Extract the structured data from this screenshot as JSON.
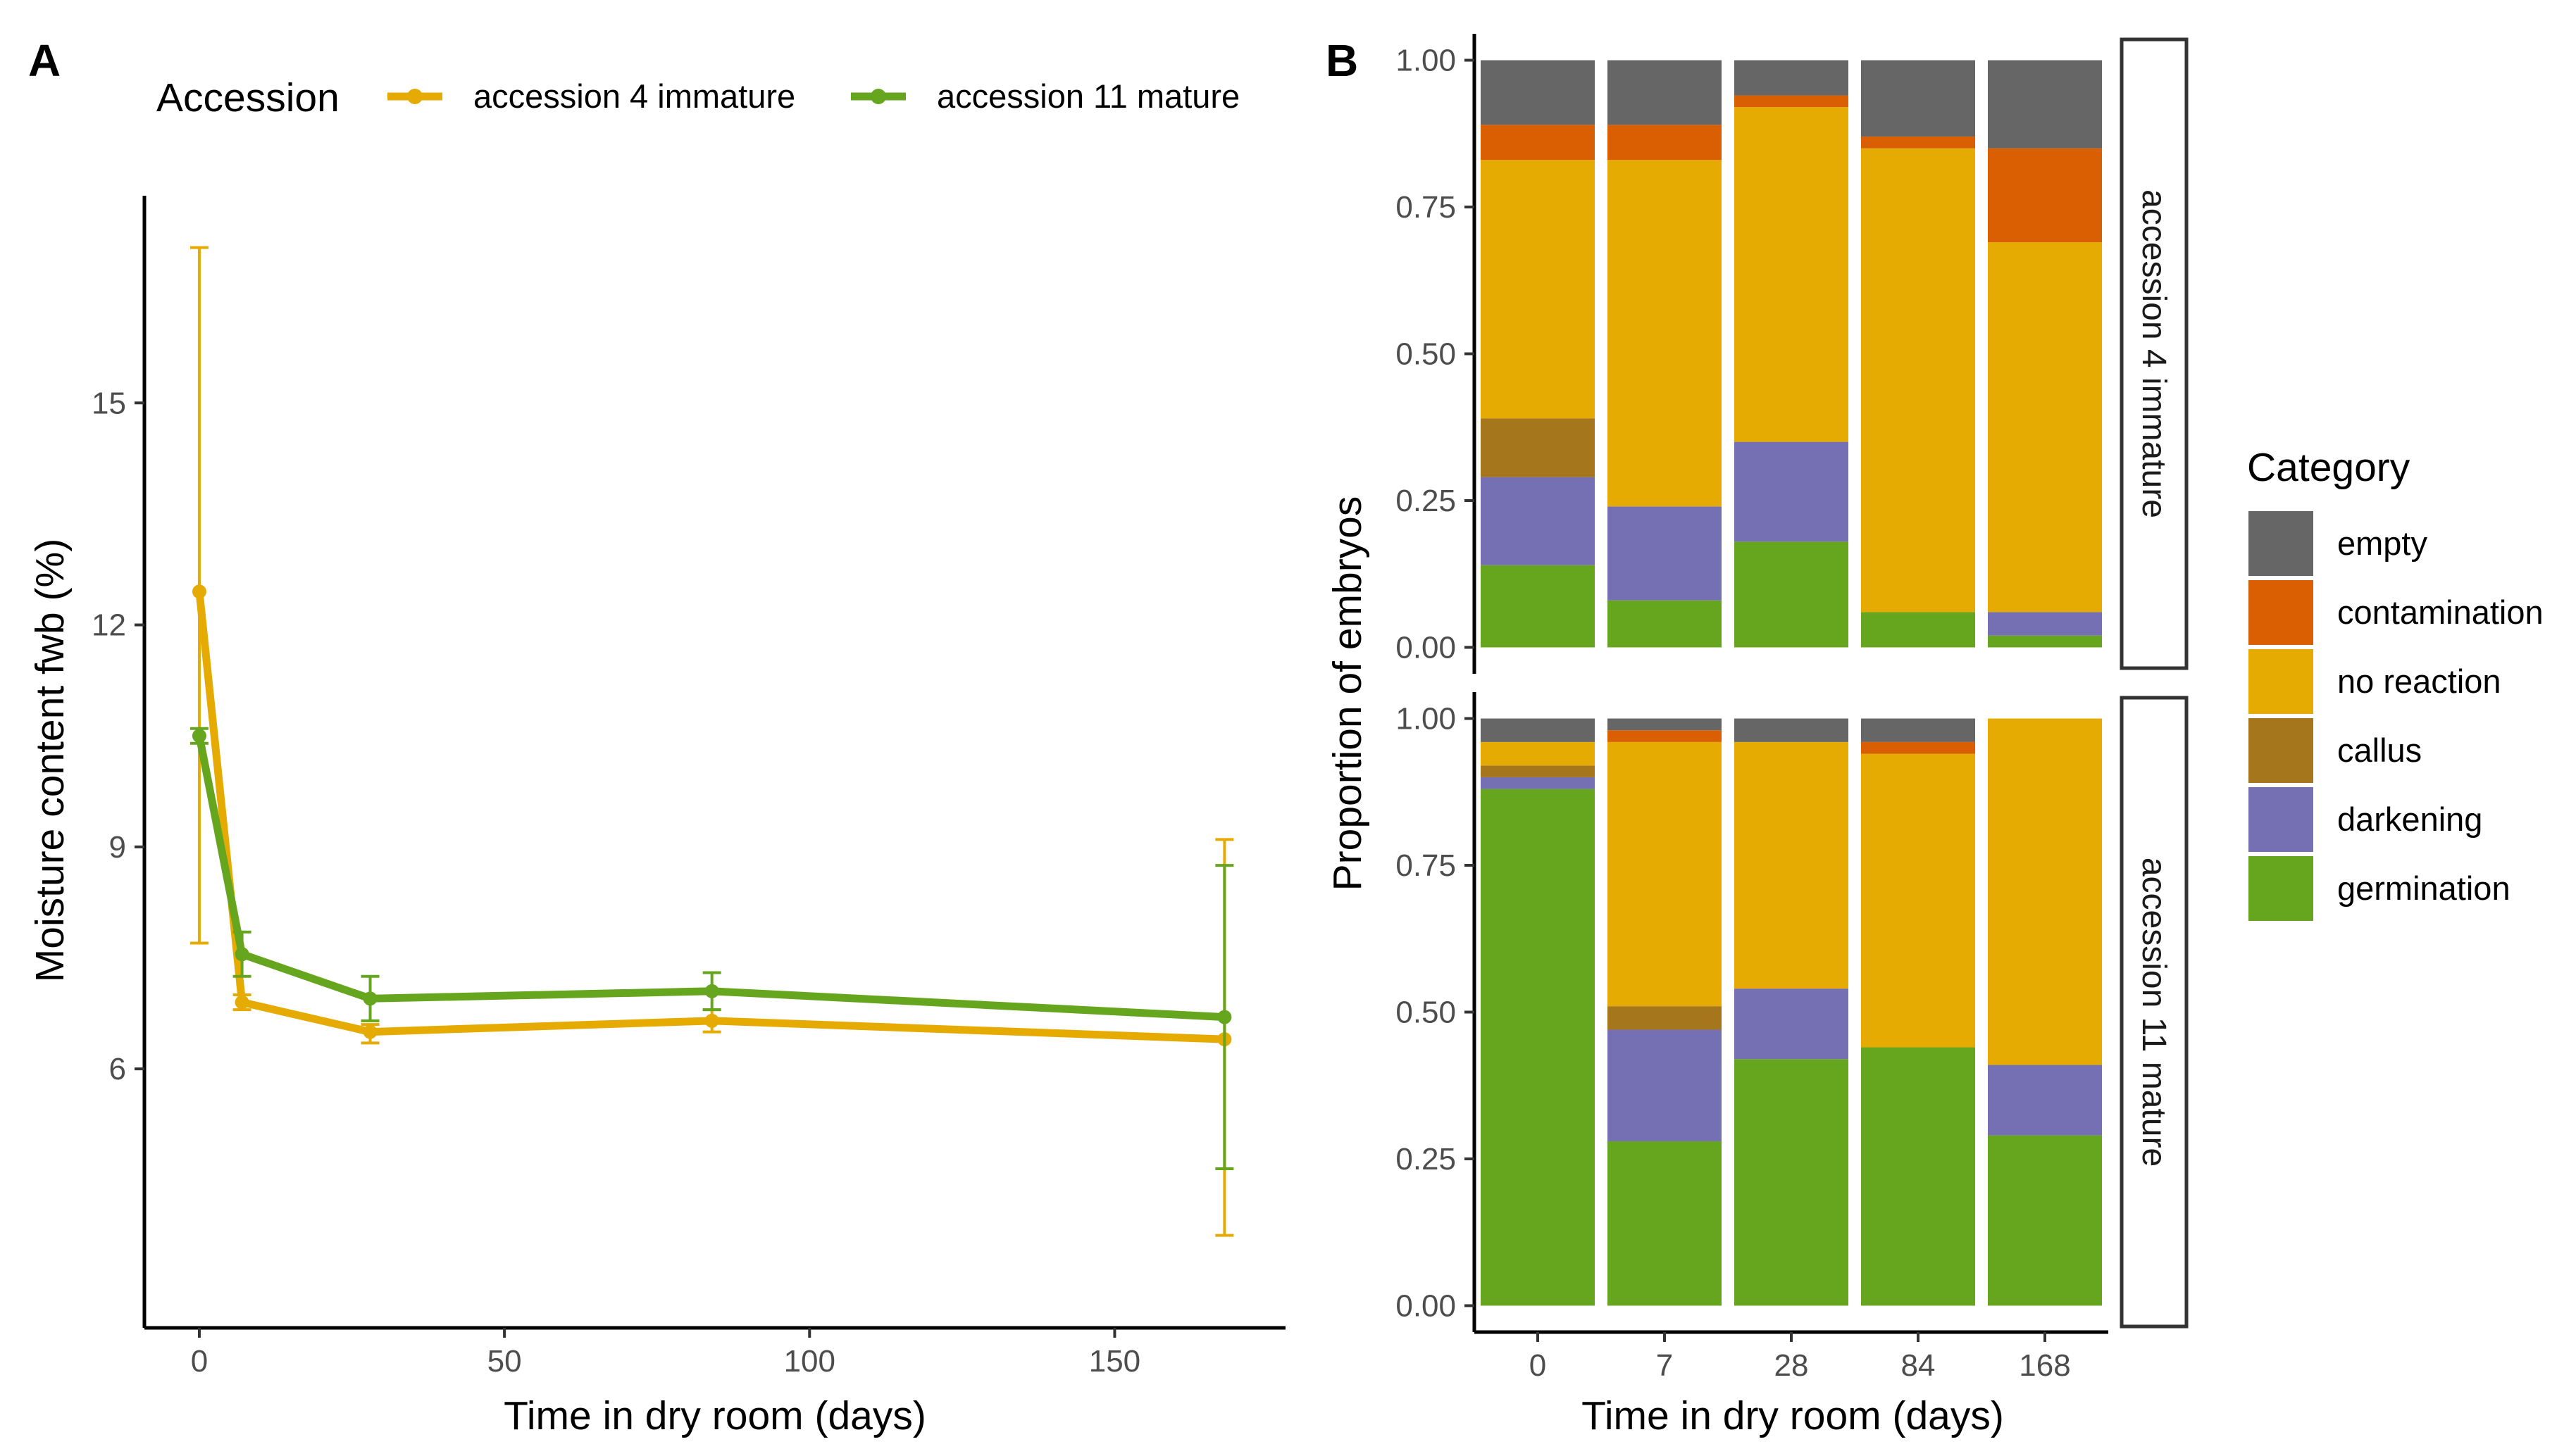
{
  "colors": {
    "accession_4": "#E6AB02",
    "accession_11": "#66A61E",
    "empty": "#666666",
    "contamination": "#D95F02",
    "no_reaction": "#E6AB02",
    "callus": "#A6761D",
    "darkening": "#7570B3",
    "germination": "#66A61E",
    "axis": "#000000",
    "tick_text": "#4d4d4d"
  },
  "chart_data": [
    {
      "panel": "A",
      "type": "line",
      "xlabel": "Time in dry room (days)",
      "ylabel": "Moisture content fwb (%)",
      "xlim": [
        -9,
        178
      ],
      "ylim": [
        2.5,
        17.8
      ],
      "x_ticks": [
        0,
        50,
        100,
        150
      ],
      "y_ticks": [
        6,
        9,
        12,
        15
      ],
      "legend": {
        "title": "Accession",
        "position": "top"
      },
      "grid": false,
      "series": [
        {
          "name": "accession 4 immature",
          "color_key": "accession_4",
          "x": [
            0,
            7,
            28,
            84,
            168
          ],
          "y": [
            12.45,
            6.9,
            6.5,
            6.65,
            6.4
          ],
          "error_low": [
            7.7,
            6.8,
            6.35,
            6.5,
            3.75
          ],
          "error_high": [
            17.1,
            7.0,
            6.6,
            6.8,
            9.1
          ]
        },
        {
          "name": "accession 11 mature",
          "color_key": "accession_11",
          "x": [
            0,
            7,
            28,
            84,
            168
          ],
          "y": [
            10.5,
            7.55,
            6.95,
            7.05,
            6.7
          ],
          "error_low": [
            10.4,
            7.25,
            6.65,
            6.8,
            4.65
          ],
          "error_high": [
            10.6,
            7.85,
            7.25,
            7.3,
            8.75
          ]
        }
      ]
    },
    {
      "panel": "B",
      "type": "bar",
      "stacked": true,
      "xlabel": "Time in dry room (days)",
      "ylabel": "Proportion of embryos",
      "ylim": [
        0,
        1
      ],
      "y_ticks": [
        "0.00",
        "0.25",
        "0.50",
        "0.75",
        "1.00"
      ],
      "categories": [
        "0",
        "7",
        "28",
        "84",
        "168"
      ],
      "legend": {
        "title": "Category",
        "position": "right",
        "entries": [
          "empty",
          "contamination",
          "no reaction",
          "callus",
          "darkening",
          "germination"
        ]
      },
      "facets": [
        {
          "strip": "accession 4 immature",
          "series": [
            {
              "name": "germination",
              "values": [
                0.14,
                0.08,
                0.18,
                0.06,
                0.02
              ]
            },
            {
              "name": "darkening",
              "values": [
                0.15,
                0.16,
                0.17,
                0.0,
                0.04
              ]
            },
            {
              "name": "callus",
              "values": [
                0.1,
                0.0,
                0.0,
                0.0,
                0.0
              ]
            },
            {
              "name": "no reaction",
              "values": [
                0.44,
                0.59,
                0.57,
                0.79,
                0.63
              ]
            },
            {
              "name": "contamination",
              "values": [
                0.06,
                0.06,
                0.02,
                0.02,
                0.16
              ]
            },
            {
              "name": "empty",
              "values": [
                0.11,
                0.11,
                0.06,
                0.13,
                0.15
              ]
            }
          ]
        },
        {
          "strip": "accession 11 mature",
          "series": [
            {
              "name": "germination",
              "values": [
                0.88,
                0.28,
                0.42,
                0.44,
                0.29
              ]
            },
            {
              "name": "darkening",
              "values": [
                0.02,
                0.19,
                0.12,
                0.0,
                0.12
              ]
            },
            {
              "name": "callus",
              "values": [
                0.02,
                0.04,
                0.0,
                0.0,
                0.0
              ]
            },
            {
              "name": "no reaction",
              "values": [
                0.04,
                0.45,
                0.42,
                0.5,
                0.59
              ]
            },
            {
              "name": "contamination",
              "values": [
                0.0,
                0.02,
                0.0,
                0.02,
                0.0
              ]
            },
            {
              "name": "empty",
              "values": [
                0.04,
                0.02,
                0.04,
                0.04,
                0.0
              ]
            }
          ]
        }
      ]
    }
  ]
}
